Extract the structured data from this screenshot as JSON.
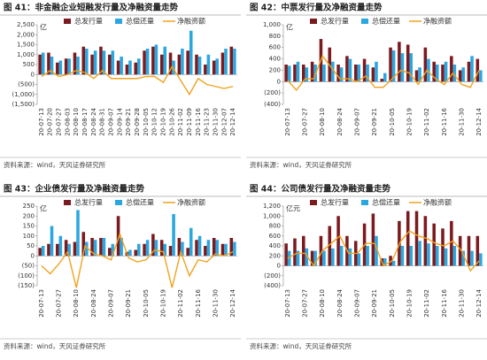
{
  "chart_data": [
    {
      "type": "bar",
      "title": "图 41：非金融企业短融发行量及净融资量走势",
      "unit": "亿",
      "source": "资料来源：wind，天风证券研究所",
      "categories": [
        "20-07-13",
        "20-07-20",
        "20-07-27",
        "20-08-03",
        "20-08-10",
        "20-08-17",
        "20-08-24",
        "20-08-31",
        "20-09-07",
        "20-09-14",
        "20-09-21",
        "20-09-28",
        "20-10-05",
        "20-10-12",
        "20-10-19",
        "20-10-26",
        "20-11-02",
        "20-11-09",
        "20-11-16",
        "20-11-23",
        "20-11-30",
        "20-12-07",
        "20-12-14"
      ],
      "ylim": [
        -1500,
        2500
      ],
      "yticks": [
        {
          "value": 2500,
          "label": "2,500"
        },
        {
          "value": 2000,
          "label": "2,000"
        },
        {
          "value": 1500,
          "label": "1,500"
        },
        {
          "value": 1000,
          "label": "1,000"
        },
        500,
        0,
        {
          "value": -500,
          "label": "(500)"
        },
        {
          "value": -1000,
          "label": "(1,000)"
        },
        {
          "value": -1500,
          "label": "(1,500)"
        }
      ],
      "series": [
        {
          "name": "总发行量",
          "type": "bar",
          "color": "#7b1a1f",
          "values": [
            1000,
            1100,
            600,
            800,
            1100,
            1400,
            1000,
            1400,
            1000,
            700,
            500,
            600,
            1200,
            1400,
            1000,
            1100,
            1000,
            1200,
            1000,
            500,
            700,
            1100,
            1400
          ]
        },
        {
          "name": "总偿还量",
          "type": "bar",
          "color": "#2aa7df",
          "values": [
            1100,
            900,
            700,
            800,
            900,
            1300,
            1200,
            1200,
            1200,
            900,
            700,
            800,
            1300,
            1500,
            1400,
            700,
            1300,
            2200,
            900,
            1000,
            800,
            1300,
            1300
          ]
        },
        {
          "name": "净融资额",
          "type": "line",
          "color": "#f0a21f",
          "values": [
            -100,
            200,
            -100,
            0,
            200,
            100,
            -200,
            200,
            -200,
            -200,
            -200,
            -200,
            -100,
            -100,
            -400,
            400,
            -300,
            -1000,
            -200,
            -500,
            -600,
            -700,
            -600
          ]
        }
      ]
    },
    {
      "type": "bar",
      "title": "图 42：中票发行量及净融资量走势",
      "unit": "亿",
      "source": "资料来源：wind，天风证券研究所",
      "categories": [
        "20-07-13",
        null,
        "20-07-27",
        null,
        "20-08-10",
        null,
        "20-08-24",
        null,
        "20-09-07",
        null,
        "20-09-21",
        null,
        "20-10-05",
        null,
        "20-10-19",
        null,
        "20-11-02",
        null,
        "20-11-16",
        null,
        "20-11-30",
        null,
        "20-12-14"
      ],
      "ylim": [
        -400,
        1000
      ],
      "yticks": [
        {
          "value": 1000,
          "label": "1,000"
        },
        800,
        600,
        400,
        200,
        0,
        {
          "value": -200,
          "label": "(200)"
        },
        {
          "value": -400,
          "label": "(400)"
        }
      ],
      "series": [
        {
          "name": "总发行量",
          "type": "bar",
          "color": "#7b1a1f",
          "values": [
            300,
            300,
            300,
            350,
            750,
            600,
            300,
            450,
            300,
            400,
            250,
            50,
            600,
            700,
            650,
            200,
            600,
            350,
            300,
            450,
            200,
            350,
            400
          ]
        },
        {
          "name": "总偿还量",
          "type": "bar",
          "color": "#2aa7df",
          "values": [
            280,
            350,
            250,
            300,
            300,
            350,
            250,
            400,
            300,
            300,
            350,
            150,
            550,
            500,
            500,
            250,
            400,
            300,
            350,
            300,
            250,
            450,
            200
          ]
        },
        {
          "name": "净融资额",
          "type": "line",
          "color": "#f0a21f",
          "values": [
            20,
            -150,
            50,
            50,
            450,
            250,
            50,
            50,
            0,
            100,
            -100,
            -100,
            50,
            200,
            150,
            -50,
            200,
            50,
            -50,
            150,
            -50,
            -100,
            200
          ]
        }
      ]
    },
    {
      "type": "bar",
      "title": "图 43：企业债发行量及净融资量走势",
      "unit": "亿",
      "source": "资料来源：wind，天风证券研究所",
      "categories": [
        "20-07-13",
        null,
        "20-07-27",
        null,
        "20-08-10",
        null,
        "20-08-24",
        null,
        "20-09-07",
        null,
        "20-09-21",
        null,
        "20-10-05",
        null,
        "20-10-19",
        null,
        "20-11-02",
        null,
        "20-11-16",
        null,
        "20-11-30",
        null,
        "20-12-14"
      ],
      "ylim": [
        -150,
        250
      ],
      "yticks": [
        250,
        200,
        150,
        100,
        50,
        0,
        {
          "value": -50,
          "label": "(50)"
        },
        {
          "value": -100,
          "label": "(100)"
        },
        {
          "value": -150,
          "label": "(150)"
        }
      ],
      "series": [
        {
          "name": "总发行量",
          "type": "bar",
          "color": "#7b1a1f",
          "values": [
            40,
            60,
            60,
            80,
            70,
            120,
            90,
            90,
            40,
            200,
            20,
            30,
            60,
            110,
            80,
            50,
            90,
            40,
            80,
            50,
            90,
            60,
            90
          ]
        },
        {
          "name": "总偿还量",
          "type": "bar",
          "color": "#2aa7df",
          "values": [
            50,
            150,
            100,
            60,
            230,
            70,
            80,
            90,
            60,
            90,
            30,
            60,
            80,
            80,
            60,
            210,
            70,
            140,
            100,
            80,
            80,
            60,
            70
          ]
        },
        {
          "name": "净融资额",
          "type": "line",
          "color": "#f0a21f",
          "values": [
            -50,
            -90,
            -40,
            20,
            -160,
            50,
            10,
            0,
            -20,
            110,
            -10,
            -30,
            -20,
            30,
            20,
            -160,
            20,
            -100,
            -20,
            -30,
            10,
            0,
            20
          ]
        }
      ]
    },
    {
      "type": "bar",
      "title": "图 44：公司债发行量及净融资量走势",
      "unit": "亿元",
      "source": "资料来源：wind，天风证券研究所",
      "categories": [
        "20-07-13",
        null,
        "20-07-27",
        null,
        "20-08-10",
        null,
        "20-08-24",
        null,
        "20-09-07",
        null,
        "20-09-21",
        null,
        "20-10-05",
        null,
        "20-10-19",
        null,
        "20-11-02",
        null,
        "20-11-16",
        null,
        "20-11-30",
        null,
        "20-12-14"
      ],
      "ylim": [
        -400,
        1200
      ],
      "yticks": [
        {
          "value": 1200,
          "label": "1,200"
        },
        {
          "value": 1000,
          "label": "1,000"
        },
        800,
        600,
        400,
        200,
        0,
        {
          "value": -200,
          "label": "(200)"
        },
        {
          "value": -400,
          "label": "(400)"
        }
      ],
      "series": [
        {
          "name": "总发行量",
          "type": "bar",
          "color": "#7b1a1f",
          "values": [
            450,
            550,
            600,
            300,
            600,
            800,
            1000,
            600,
            500,
            850,
            1050,
            150,
            200,
            900,
            1100,
            1100,
            1000,
            850,
            750,
            900,
            600,
            600,
            600
          ]
        },
        {
          "name": "总偿还量",
          "type": "bar",
          "color": "#2aa7df",
          "values": [
            300,
            300,
            350,
            300,
            300,
            350,
            400,
            350,
            250,
            400,
            600,
            150,
            100,
            400,
            400,
            500,
            450,
            400,
            350,
            400,
            300,
            300,
            250
          ]
        },
        {
          "name": "净融资额",
          "type": "line",
          "color": "#f0a21f",
          "values": [
            150,
            250,
            250,
            0,
            300,
            450,
            600,
            250,
            250,
            450,
            450,
            0,
            100,
            500,
            700,
            600,
            550,
            450,
            400,
            500,
            300,
            -100,
            100
          ]
        }
      ]
    }
  ]
}
